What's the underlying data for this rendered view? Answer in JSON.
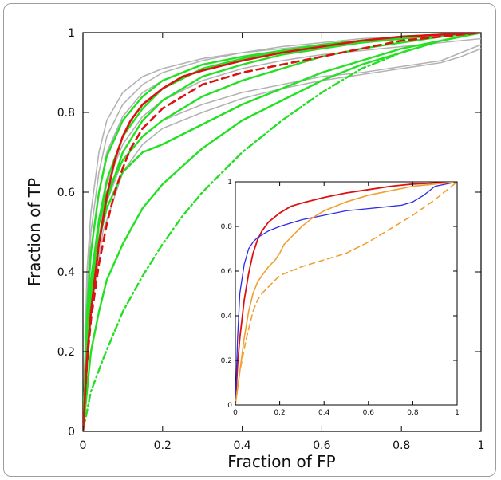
{
  "chart_data": [
    {
      "type": "line",
      "xlabel": "Fraction of FP",
      "ylabel": "Fraction of TP",
      "xlim": [
        0,
        1
      ],
      "ylim": [
        0,
        1
      ],
      "xticks": [
        "0",
        "0.2",
        "0.4",
        "0.6",
        "0.8",
        "1"
      ],
      "yticks": [
        "0",
        "0.2",
        "0.4",
        "0.6",
        "0.8",
        "1"
      ],
      "grid": false,
      "colors": {
        "gray": "#b3b3b3",
        "green": "#22e022",
        "red": "#dd1111"
      },
      "series": [
        {
          "color": "gray",
          "style": "solid",
          "x": [
            0,
            0.01,
            0.02,
            0.04,
            0.06,
            0.1,
            0.15,
            0.2,
            0.3,
            0.4,
            0.5,
            0.6,
            0.7,
            0.8,
            0.9,
            1.0
          ],
          "y": [
            0,
            0.4,
            0.55,
            0.7,
            0.78,
            0.85,
            0.89,
            0.91,
            0.935,
            0.95,
            0.96,
            0.97,
            0.98,
            0.99,
            0.995,
            1.0
          ]
        },
        {
          "color": "gray",
          "style": "solid",
          "x": [
            0,
            0.01,
            0.02,
            0.04,
            0.06,
            0.1,
            0.15,
            0.2,
            0.3,
            0.4,
            0.5,
            0.6,
            0.7,
            0.8,
            0.9,
            1.0
          ],
          "y": [
            0,
            0.35,
            0.5,
            0.65,
            0.74,
            0.82,
            0.87,
            0.9,
            0.93,
            0.95,
            0.965,
            0.975,
            0.985,
            0.99,
            0.995,
            1.0
          ]
        },
        {
          "color": "gray",
          "style": "solid",
          "x": [
            0,
            0.01,
            0.02,
            0.04,
            0.06,
            0.1,
            0.15,
            0.2,
            0.3,
            0.4,
            0.5,
            0.6,
            0.7,
            0.8,
            0.9,
            1.0
          ],
          "y": [
            0,
            0.3,
            0.45,
            0.6,
            0.7,
            0.79,
            0.85,
            0.88,
            0.92,
            0.94,
            0.955,
            0.965,
            0.975,
            0.985,
            0.99,
            1.0
          ]
        },
        {
          "color": "gray",
          "style": "solid",
          "x": [
            0,
            0.01,
            0.02,
            0.04,
            0.06,
            0.1,
            0.15,
            0.2,
            0.3,
            0.4,
            0.5,
            0.6,
            0.7,
            0.8,
            0.9,
            1.0
          ],
          "y": [
            0,
            0.25,
            0.38,
            0.52,
            0.62,
            0.72,
            0.79,
            0.83,
            0.88,
            0.91,
            0.93,
            0.945,
            0.955,
            0.965,
            0.975,
            0.985
          ]
        },
        {
          "color": "gray",
          "style": "solid",
          "x": [
            0,
            0.02,
            0.05,
            0.1,
            0.15,
            0.2,
            0.3,
            0.4,
            0.5,
            0.6,
            0.7,
            0.8,
            0.9,
            0.95,
            1.0
          ],
          "y": [
            0,
            0.35,
            0.55,
            0.68,
            0.74,
            0.78,
            0.82,
            0.85,
            0.87,
            0.89,
            0.9,
            0.915,
            0.93,
            0.95,
            0.97
          ]
        },
        {
          "color": "gray",
          "style": "solid",
          "x": [
            0,
            0.02,
            0.05,
            0.1,
            0.15,
            0.2,
            0.3,
            0.4,
            0.5,
            0.6,
            0.7,
            0.8,
            0.9,
            0.95,
            1.0
          ],
          "y": [
            0,
            0.3,
            0.5,
            0.65,
            0.72,
            0.76,
            0.8,
            0.835,
            0.86,
            0.88,
            0.895,
            0.91,
            0.925,
            0.94,
            0.96
          ]
        },
        {
          "color": "green",
          "style": "solid",
          "x": [
            0,
            0.01,
            0.02,
            0.04,
            0.06,
            0.1,
            0.15,
            0.2,
            0.3,
            0.4,
            0.5,
            0.6,
            0.7,
            0.8,
            0.9,
            1.0
          ],
          "y": [
            0,
            0.3,
            0.45,
            0.6,
            0.69,
            0.78,
            0.84,
            0.88,
            0.92,
            0.94,
            0.955,
            0.97,
            0.98,
            0.99,
            0.995,
            1.0
          ]
        },
        {
          "color": "green",
          "style": "solid",
          "x": [
            0,
            0.01,
            0.02,
            0.04,
            0.06,
            0.1,
            0.15,
            0.2,
            0.3,
            0.4,
            0.5,
            0.6,
            0.7,
            0.8,
            0.9,
            1.0
          ],
          "y": [
            0,
            0.25,
            0.38,
            0.53,
            0.63,
            0.74,
            0.81,
            0.86,
            0.91,
            0.935,
            0.955,
            0.97,
            0.98,
            0.99,
            0.995,
            1.0
          ]
        },
        {
          "color": "green",
          "style": "solid",
          "x": [
            0,
            0.01,
            0.02,
            0.04,
            0.06,
            0.1,
            0.15,
            0.2,
            0.3,
            0.4,
            0.5,
            0.6,
            0.7,
            0.8,
            0.9,
            1.0
          ],
          "y": [
            0,
            0.2,
            0.33,
            0.48,
            0.58,
            0.7,
            0.78,
            0.83,
            0.89,
            0.92,
            0.945,
            0.96,
            0.975,
            0.985,
            0.995,
            1.0
          ]
        },
        {
          "color": "green",
          "style": "solid",
          "x": [
            0,
            0.02,
            0.04,
            0.06,
            0.1,
            0.15,
            0.2,
            0.3,
            0.4,
            0.5,
            0.6,
            0.7,
            0.8,
            0.9,
            1.0
          ],
          "y": [
            0,
            0.35,
            0.52,
            0.6,
            0.68,
            0.74,
            0.78,
            0.84,
            0.88,
            0.91,
            0.94,
            0.96,
            0.975,
            0.99,
            1.0
          ]
        },
        {
          "color": "green",
          "style": "solid",
          "x": [
            0,
            0.02,
            0.04,
            0.06,
            0.1,
            0.15,
            0.2,
            0.3,
            0.4,
            0.5,
            0.6,
            0.7,
            0.8,
            0.9,
            1.0
          ],
          "y": [
            0,
            0.32,
            0.48,
            0.56,
            0.65,
            0.7,
            0.72,
            0.77,
            0.82,
            0.86,
            0.9,
            0.93,
            0.96,
            0.98,
            1.0
          ]
        },
        {
          "color": "green",
          "style": "solid",
          "x": [
            0,
            0.02,
            0.04,
            0.06,
            0.1,
            0.15,
            0.2,
            0.3,
            0.4,
            0.5,
            0.6,
            0.7,
            0.8,
            0.9,
            1.0
          ],
          "y": [
            0,
            0.2,
            0.3,
            0.38,
            0.47,
            0.56,
            0.62,
            0.71,
            0.78,
            0.83,
            0.88,
            0.92,
            0.95,
            0.98,
            1.0
          ]
        },
        {
          "color": "green",
          "style": "dashdot",
          "x": [
            0,
            0.02,
            0.05,
            0.1,
            0.15,
            0.2,
            0.25,
            0.3,
            0.4,
            0.5,
            0.6,
            0.7,
            0.8,
            0.9,
            1.0
          ],
          "y": [
            0,
            0.1,
            0.18,
            0.3,
            0.39,
            0.47,
            0.54,
            0.6,
            0.7,
            0.78,
            0.85,
            0.91,
            0.95,
            0.98,
            1.0
          ]
        },
        {
          "color": "red",
          "style": "solid",
          "x": [
            0,
            0.01,
            0.02,
            0.04,
            0.06,
            0.08,
            0.1,
            0.12,
            0.15,
            0.2,
            0.25,
            0.3,
            0.4,
            0.5,
            0.6,
            0.7,
            0.8,
            0.9,
            1.0
          ],
          "y": [
            0,
            0.18,
            0.3,
            0.47,
            0.59,
            0.68,
            0.74,
            0.78,
            0.82,
            0.86,
            0.89,
            0.905,
            0.93,
            0.95,
            0.965,
            0.98,
            0.99,
            0.995,
            1.0
          ]
        },
        {
          "color": "red",
          "style": "dashed",
          "x": [
            0,
            0.01,
            0.02,
            0.04,
            0.06,
            0.08,
            0.1,
            0.12,
            0.15,
            0.2,
            0.25,
            0.3,
            0.4,
            0.5,
            0.6,
            0.7,
            0.8,
            0.9,
            1.0
          ],
          "y": [
            0,
            0.17,
            0.28,
            0.42,
            0.52,
            0.6,
            0.66,
            0.71,
            0.76,
            0.81,
            0.84,
            0.87,
            0.9,
            0.92,
            0.94,
            0.96,
            0.98,
            0.99,
            1.0
          ]
        }
      ]
    },
    {
      "type": "line",
      "xlim": [
        0,
        1
      ],
      "ylim": [
        0,
        1
      ],
      "xticks": [
        "0",
        "0.2",
        "0.4",
        "0.6",
        "0.8",
        "1"
      ],
      "yticks": [
        "0",
        "0.2",
        "0.4",
        "0.6",
        "0.8",
        "1"
      ],
      "grid": false,
      "colors": {
        "red": "#dd1111",
        "blue": "#2a2ae8",
        "orange": "#f0a030"
      },
      "series": [
        {
          "color": "red",
          "style": "solid",
          "x": [
            0,
            0.01,
            0.02,
            0.04,
            0.06,
            0.08,
            0.1,
            0.12,
            0.15,
            0.2,
            0.25,
            0.3,
            0.4,
            0.5,
            0.6,
            0.7,
            0.8,
            0.9,
            1.0
          ],
          "y": [
            0,
            0.18,
            0.3,
            0.47,
            0.59,
            0.68,
            0.74,
            0.78,
            0.82,
            0.86,
            0.89,
            0.905,
            0.93,
            0.95,
            0.965,
            0.98,
            0.99,
            0.995,
            1.0
          ]
        },
        {
          "color": "blue",
          "style": "solid",
          "x": [
            0,
            0.01,
            0.02,
            0.04,
            0.06,
            0.08,
            0.1,
            0.15,
            0.2,
            0.25,
            0.3,
            0.4,
            0.5,
            0.6,
            0.7,
            0.75,
            0.8,
            0.85,
            0.9,
            1.0
          ],
          "y": [
            0,
            0.3,
            0.5,
            0.63,
            0.7,
            0.73,
            0.75,
            0.78,
            0.8,
            0.815,
            0.83,
            0.85,
            0.87,
            0.88,
            0.89,
            0.895,
            0.91,
            0.94,
            0.98,
            1.0
          ]
        },
        {
          "color": "orange",
          "style": "solid",
          "x": [
            0,
            0.02,
            0.04,
            0.06,
            0.08,
            0.1,
            0.12,
            0.15,
            0.18,
            0.2,
            0.22,
            0.25,
            0.28,
            0.3,
            0.35,
            0.4,
            0.5,
            0.6,
            0.7,
            0.8,
            0.9,
            1.0
          ],
          "y": [
            0,
            0.15,
            0.3,
            0.42,
            0.5,
            0.55,
            0.58,
            0.62,
            0.65,
            0.68,
            0.72,
            0.75,
            0.78,
            0.8,
            0.84,
            0.87,
            0.91,
            0.94,
            0.96,
            0.98,
            0.99,
            1.0
          ]
        },
        {
          "color": "orange",
          "style": "dashed",
          "x": [
            0,
            0.02,
            0.05,
            0.08,
            0.1,
            0.12,
            0.15,
            0.2,
            0.25,
            0.3,
            0.4,
            0.5,
            0.6,
            0.7,
            0.8,
            0.9,
            1.0
          ],
          "y": [
            0,
            0.15,
            0.3,
            0.42,
            0.47,
            0.5,
            0.53,
            0.58,
            0.6,
            0.62,
            0.65,
            0.68,
            0.73,
            0.79,
            0.85,
            0.92,
            1.0
          ]
        }
      ]
    }
  ]
}
